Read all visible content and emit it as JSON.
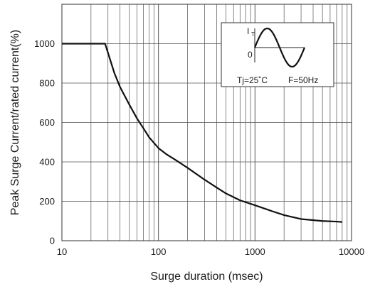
{
  "chart_data": {
    "type": "line",
    "xlabel": "Surge duration (msec)",
    "ylabel": "Peak Surge Current/rated current(%)",
    "x_scale": "log",
    "xlim": [
      10,
      10000
    ],
    "ylim": [
      0,
      1200
    ],
    "x_ticks": [
      10,
      100,
      1000,
      10000
    ],
    "x_tick_labels": [
      "10",
      "100",
      "1000",
      "10000"
    ],
    "y_ticks": [
      0,
      200,
      400,
      600,
      800,
      1000
    ],
    "y_tick_labels": [
      "0",
      "200",
      "400",
      "600",
      "800",
      "1000"
    ],
    "grid": true,
    "series": [
      {
        "points": [
          [
            10,
            1000
          ],
          [
            20,
            1000
          ],
          [
            28,
            1000
          ],
          [
            35,
            850
          ],
          [
            40,
            780
          ],
          [
            50,
            690
          ],
          [
            60,
            620
          ],
          [
            70,
            570
          ],
          [
            80,
            525
          ],
          [
            100,
            470
          ],
          [
            120,
            440
          ],
          [
            150,
            410
          ],
          [
            200,
            370
          ],
          [
            300,
            310
          ],
          [
            400,
            270
          ],
          [
            500,
            240
          ],
          [
            700,
            205
          ],
          [
            1000,
            180
          ],
          [
            1500,
            150
          ],
          [
            2000,
            130
          ],
          [
            3000,
            110
          ],
          [
            5000,
            100
          ],
          [
            7000,
            97
          ],
          [
            8000,
            95
          ]
        ]
      }
    ],
    "inset": {
      "current_label": "I",
      "current_subscript": "T",
      "zero_label": "0",
      "conditions_left": "Tj=25˚C",
      "conditions_right": "F=50Hz"
    }
  },
  "colors": {
    "grid": "#555555",
    "curve": "#111111",
    "frame": "#333333"
  }
}
